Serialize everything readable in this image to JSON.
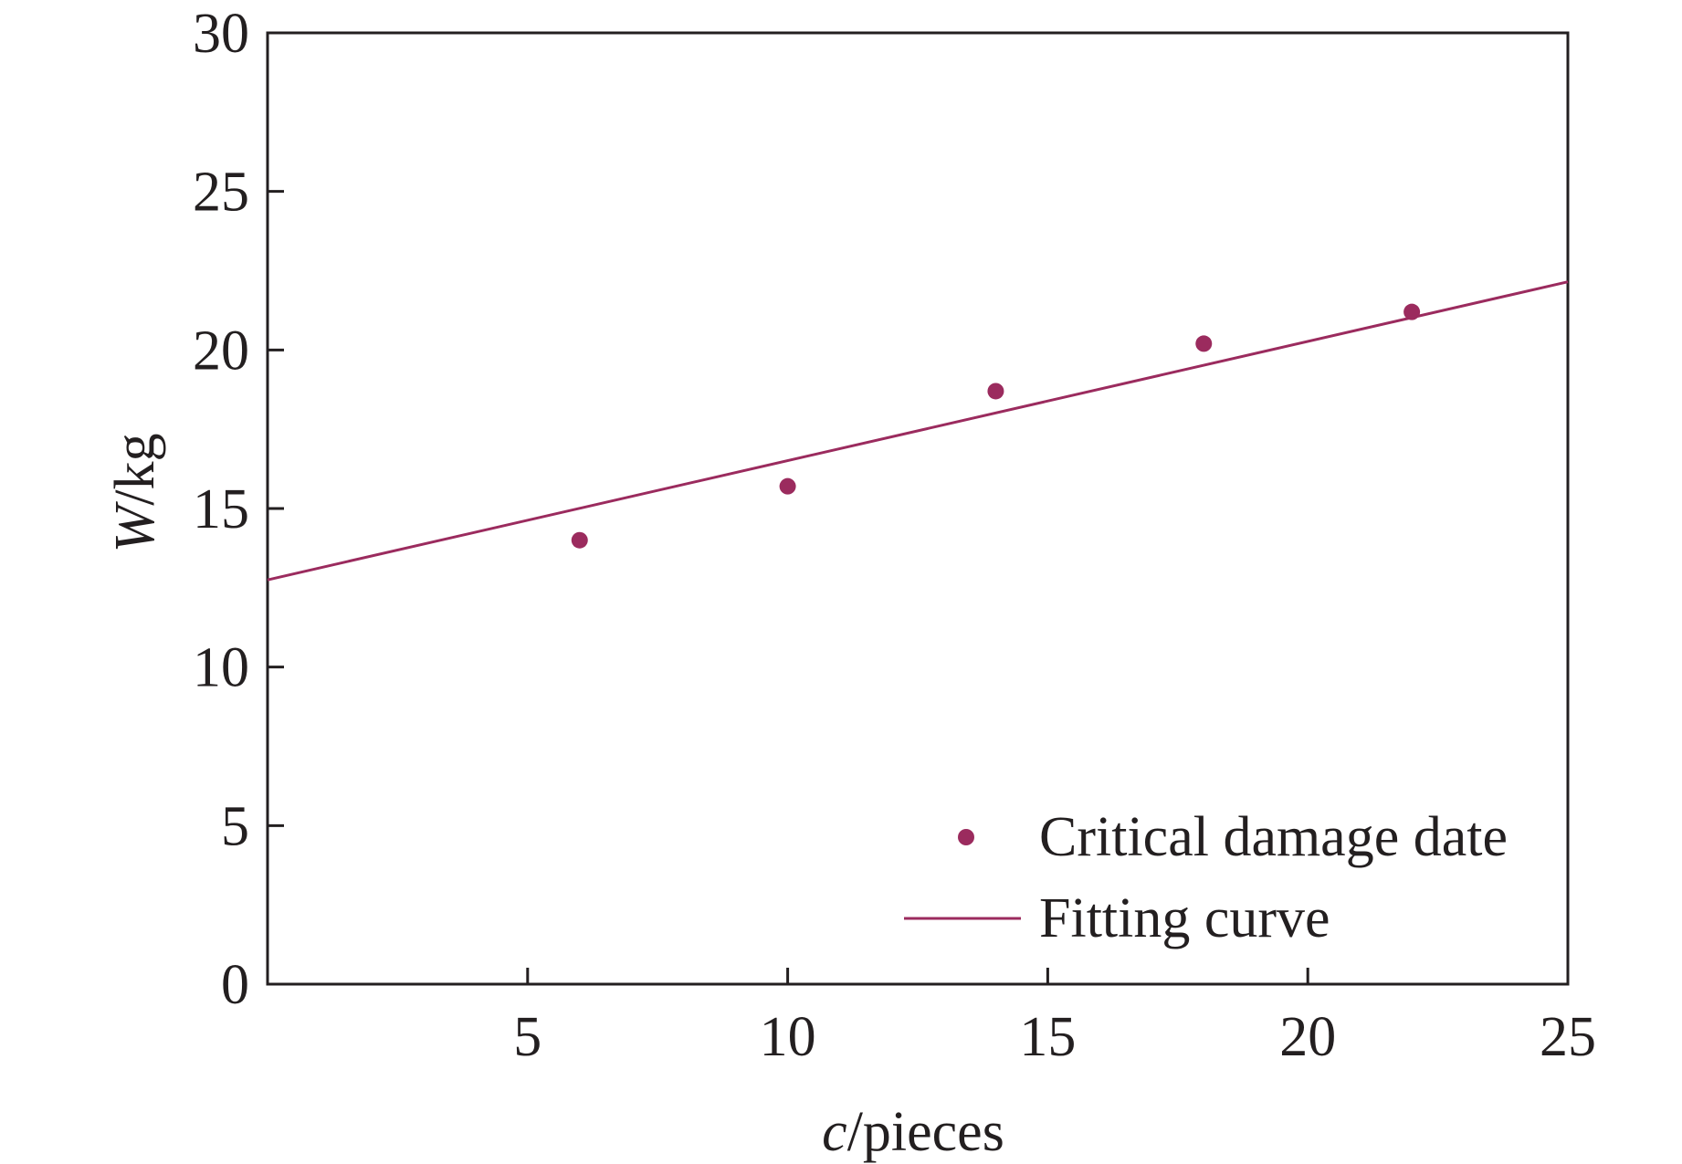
{
  "chart_data": {
    "type": "scatter",
    "title": "",
    "xlabel": {
      "var": "c",
      "unit": "/pieces"
    },
    "ylabel": {
      "var": "W",
      "unit": "/kg"
    },
    "xlim": [
      0,
      25
    ],
    "ylim": [
      0,
      30
    ],
    "xticks": [
      5,
      10,
      15,
      20,
      25
    ],
    "yticks": [
      0,
      5,
      10,
      15,
      20,
      25,
      30
    ],
    "grid": false,
    "legend_position": "bottom-right",
    "series": [
      {
        "name": "Critical damage date",
        "kind": "scatter",
        "color": "#9b2b5e",
        "x": [
          6,
          10,
          14,
          18,
          22
        ],
        "y": [
          14.0,
          15.7,
          18.7,
          20.2,
          21.2
        ]
      },
      {
        "name": "Fitting curve",
        "kind": "line",
        "color": "#9b2b5e",
        "x": [
          0,
          25
        ],
        "y": [
          12.75,
          22.15
        ]
      }
    ]
  }
}
